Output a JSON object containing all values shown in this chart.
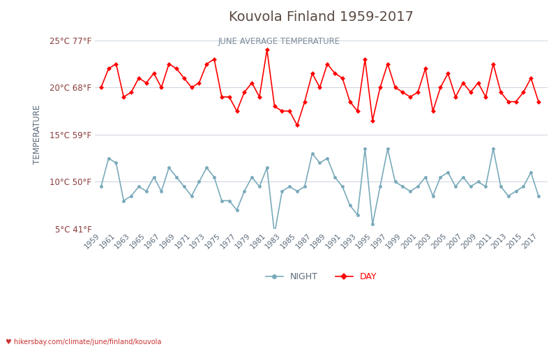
{
  "title": "Kouvola Finland 1959-2017",
  "subtitle": "JUNE AVERAGE TEMPERATURE",
  "ylabel": "TEMPERATURE",
  "xlabel_url": "hikersbay.com/climate/june/finland/kouvola",
  "title_color": "#5a4a42",
  "subtitle_color": "#7a8a9a",
  "ylabel_color": "#5a6a7a",
  "tick_label_color": "#8b3a3a",
  "xtick_color": "#5a6a7a",
  "background_color": "#ffffff",
  "grid_color": "#d0d8e0",
  "line_color_day": "#ff0000",
  "line_color_night": "#7aaabb",
  "marker_color_day": "#ff0000",
  "marker_color_night": "#7aaabb",
  "years": [
    1959,
    1960,
    1961,
    1962,
    1963,
    1964,
    1965,
    1966,
    1967,
    1968,
    1969,
    1970,
    1971,
    1972,
    1973,
    1974,
    1975,
    1976,
    1977,
    1978,
    1979,
    1980,
    1981,
    1982,
    1983,
    1984,
    1985,
    1986,
    1987,
    1988,
    1989,
    1990,
    1991,
    1992,
    1993,
    1994,
    1995,
    1996,
    1997,
    1998,
    1999,
    2000,
    2001,
    2002,
    2003,
    2004,
    2005,
    2006,
    2007,
    2008,
    2009,
    2010,
    2011,
    2012,
    2013,
    2014,
    2015,
    2016,
    2017
  ],
  "day_temps": [
    20.0,
    22.0,
    22.5,
    19.0,
    19.5,
    21.0,
    20.5,
    21.5,
    20.0,
    22.5,
    22.0,
    21.0,
    20.0,
    20.5,
    22.5,
    23.0,
    19.0,
    19.0,
    17.5,
    19.5,
    20.5,
    19.0,
    24.0,
    18.0,
    17.5,
    17.5,
    16.0,
    18.5,
    21.5,
    20.0,
    22.5,
    21.5,
    21.0,
    18.5,
    17.5,
    23.0,
    16.5,
    20.0,
    22.5,
    20.0,
    19.5,
    19.0,
    19.5,
    22.0,
    17.5,
    20.0,
    21.5,
    19.0,
    20.5,
    19.5,
    20.5,
    19.0,
    22.5,
    19.5,
    18.5,
    18.5,
    19.5,
    21.0,
    18.5
  ],
  "night_temps": [
    9.5,
    12.5,
    12.0,
    8.0,
    8.5,
    9.5,
    9.0,
    10.5,
    9.0,
    11.5,
    10.5,
    9.5,
    8.5,
    10.0,
    11.5,
    10.5,
    8.0,
    8.0,
    7.0,
    9.0,
    10.5,
    9.5,
    11.5,
    4.5,
    9.0,
    9.5,
    9.0,
    9.5,
    13.0,
    12.0,
    12.5,
    10.5,
    9.5,
    7.5,
    6.5,
    13.5,
    5.5,
    9.5,
    13.5,
    10.0,
    9.5,
    9.0,
    9.5,
    10.5,
    8.5,
    10.5,
    11.0,
    9.5,
    10.5,
    9.5,
    10.0,
    9.5,
    13.5,
    9.5,
    8.5,
    9.0,
    9.5,
    11.0,
    8.5
  ],
  "ylim": [
    5,
    25
  ],
  "yticks_c": [
    5,
    10,
    15,
    20,
    25
  ],
  "ytick_labels": [
    "5°C 41°F",
    "10°C 50°F",
    "15°C 59°F",
    "20°C 68°F",
    "25°C 77°F"
  ],
  "xtick_years": [
    1959,
    1961,
    1963,
    1965,
    1967,
    1969,
    1971,
    1973,
    1975,
    1977,
    1979,
    1981,
    1983,
    1985,
    1987,
    1989,
    1991,
    1993,
    1995,
    1997,
    1999,
    2001,
    2003,
    2005,
    2007,
    2009,
    2011,
    2013,
    2015,
    2017
  ]
}
